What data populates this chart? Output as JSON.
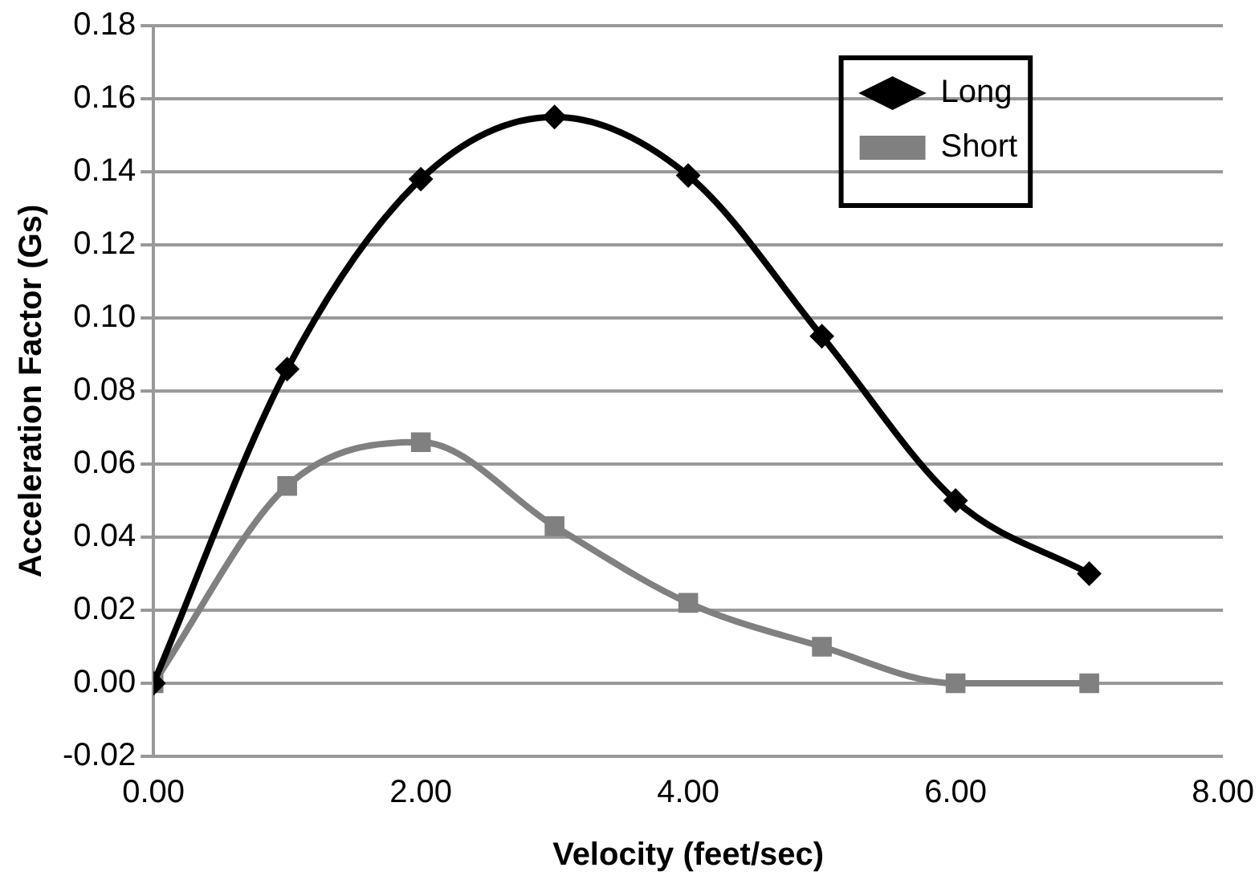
{
  "chart_data": {
    "type": "line",
    "xlabel": "Velocity (feet/sec)",
    "ylabel": "Acceleration Factor (Gs)",
    "x": [
      0,
      1,
      2,
      3,
      4,
      5,
      6,
      7
    ],
    "series": [
      {
        "name": "Long",
        "color": "#000000",
        "marker": "diamond",
        "values": [
          0,
          0.086,
          0.138,
          0.155,
          0.139,
          0.095,
          0.05,
          0.03
        ]
      },
      {
        "name": "Short",
        "color": "#808080",
        "marker": "square",
        "values": [
          0,
          0.054,
          0.066,
          0.043,
          0.022,
          0.01,
          0,
          0
        ]
      }
    ],
    "xlim": [
      0,
      8
    ],
    "xticks": [
      {
        "value": 0,
        "label": "0.00"
      },
      {
        "value": 2,
        "label": "2.00"
      },
      {
        "value": 4,
        "label": "4.00"
      },
      {
        "value": 6,
        "label": "6.00"
      },
      {
        "value": 8,
        "label": "8.00"
      }
    ],
    "ylim": [
      -0.02,
      0.18
    ],
    "yticks": [
      {
        "value": -0.02,
        "label": "-0.02"
      },
      {
        "value": 0,
        "label": "0.00"
      },
      {
        "value": 0.02,
        "label": "0.02"
      },
      {
        "value": 0.04,
        "label": "0.04"
      },
      {
        "value": 0.06,
        "label": "0.06"
      },
      {
        "value": 0.08,
        "label": "0.08"
      },
      {
        "value": 0.1,
        "label": "0.10"
      },
      {
        "value": 0.12,
        "label": "0.12"
      },
      {
        "value": 0.14,
        "label": "0.14"
      },
      {
        "value": 0.16,
        "label": "0.16"
      },
      {
        "value": 0.18,
        "label": "0.18"
      }
    ],
    "grid": "y",
    "legend": "top right"
  }
}
